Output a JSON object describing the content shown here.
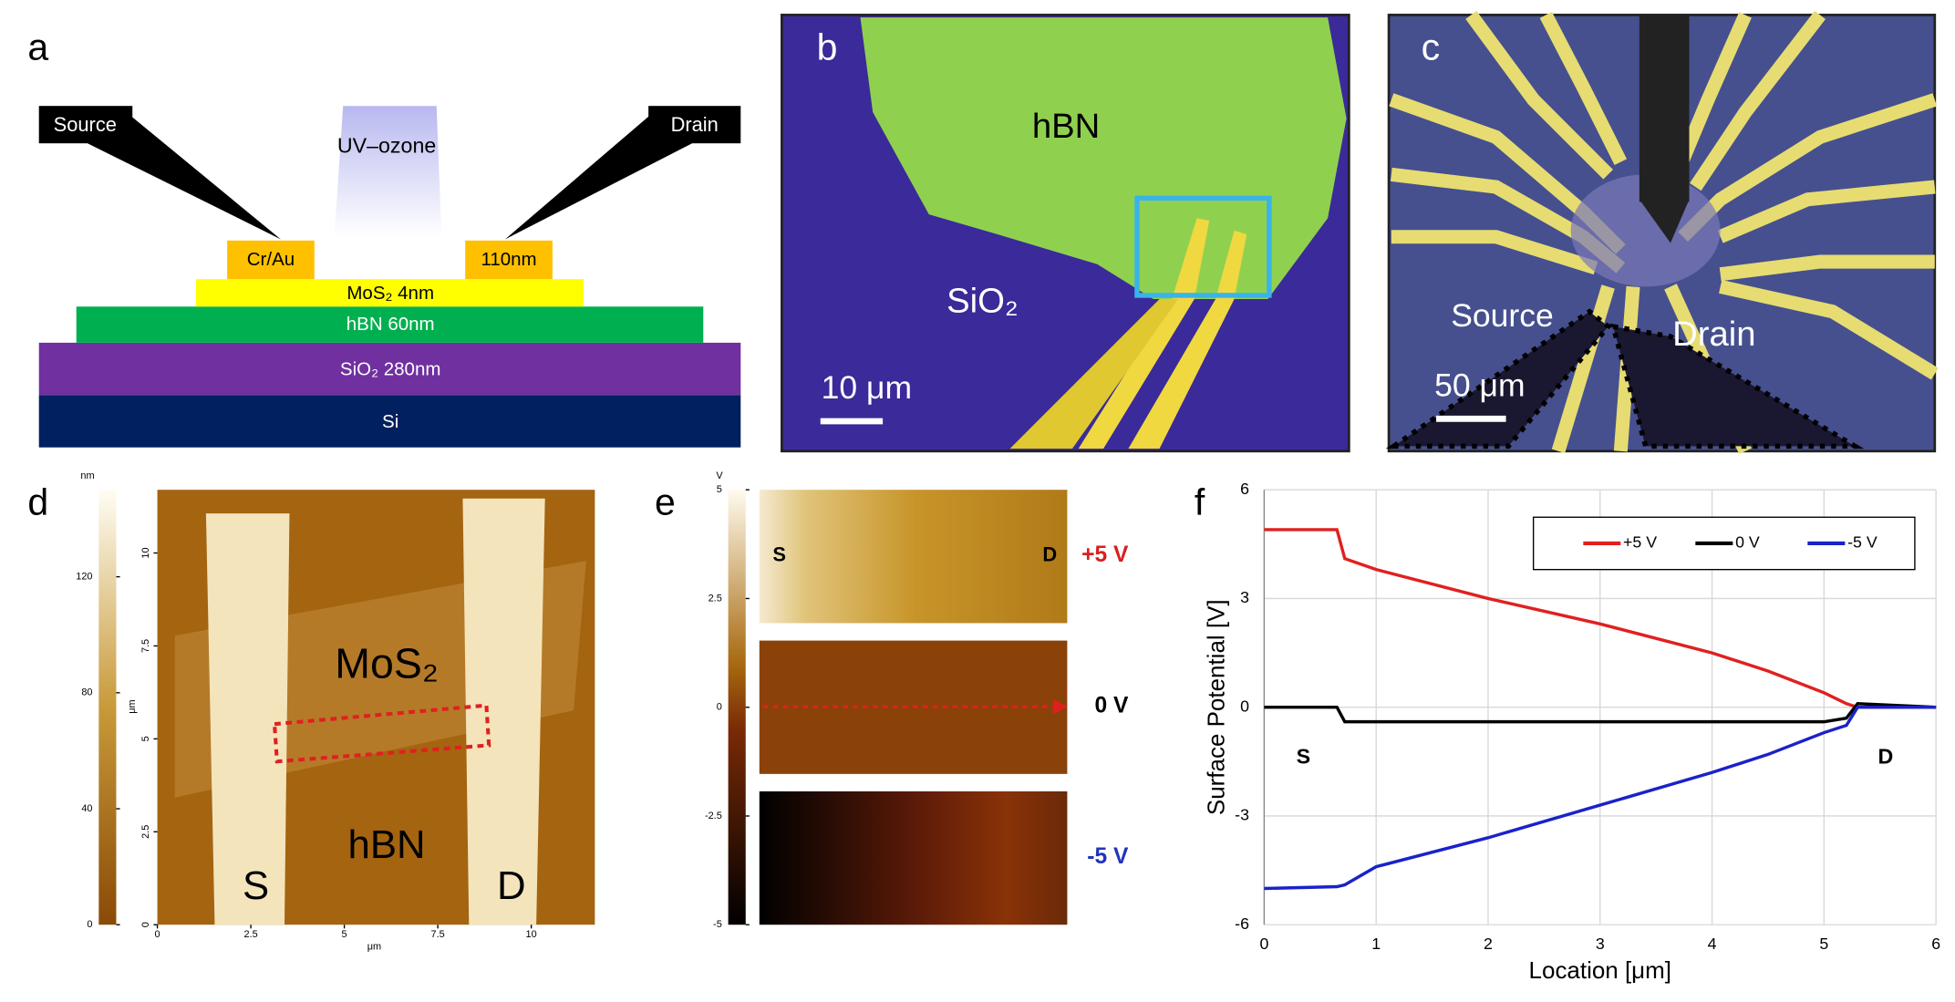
{
  "panel_a": {
    "label": "a",
    "source": "Source",
    "drain": "Drain",
    "uv": "UV–ozone",
    "contact_left": "Cr/Au",
    "contact_right": "110nm",
    "layers": [
      "MoS₂ 4nm",
      "hBN 60nm",
      "SiO₂ 280nm",
      "Si"
    ]
  },
  "panel_b": {
    "label": "b",
    "hbn": "hBN",
    "sio2": "SiO₂",
    "scale": "10 μm"
  },
  "panel_c": {
    "label": "c",
    "source": "Source",
    "drain": "Drain",
    "scale": "50 μm"
  },
  "panel_d": {
    "label": "d",
    "colorbar": {
      "unit": "nm",
      "lim": [
        0,
        150
      ],
      "ticks": [
        0,
        40,
        80,
        120
      ]
    },
    "xlim": [
      0,
      11.7
    ],
    "ylim": [
      0,
      11.7
    ],
    "xticks": [
      0,
      2.5,
      5,
      7.5,
      10
    ],
    "yticks": [
      0,
      2.5,
      5,
      7.5,
      10
    ],
    "xlabel": "μm",
    "ylabel": "μm",
    "mos2": "MoS₂",
    "hbn": "hBN",
    "s": "S",
    "d": "D"
  },
  "panel_e": {
    "label": "e",
    "colorbar": {
      "unit": "V",
      "lim": [
        -5,
        5
      ],
      "ticks": [
        -5,
        -2.5,
        0,
        2.5,
        5
      ]
    },
    "s": "S",
    "d": "D",
    "maps": [
      "+5 V",
      "0 V",
      "-5 V"
    ],
    "map_colors": [
      "#d62020",
      "#000000",
      "#2233bb"
    ]
  },
  "chart_data": {
    "type": "line",
    "panel_label": "f",
    "xlabel": "Location [μm]",
    "ylabel": "Surface Potential [V]",
    "x": [
      0,
      0.65,
      0.72,
      1,
      2,
      3,
      4,
      4.5,
      5,
      5.2,
      5.3,
      6
    ],
    "xlim": [
      0,
      6
    ],
    "ylim": [
      -6,
      6
    ],
    "xticks": [
      0,
      1,
      2,
      3,
      4,
      5,
      6
    ],
    "yticks": [
      -6,
      -3,
      0,
      3,
      6
    ],
    "grid": true,
    "legend": "upper right",
    "annotations": [
      "S",
      "D"
    ],
    "series": [
      {
        "name": "+5 V",
        "color": "#e02020",
        "values": [
          4.9,
          4.9,
          4.1,
          3.8,
          3.0,
          2.3,
          1.5,
          1.0,
          0.4,
          0.1,
          0.0,
          0.0
        ]
      },
      {
        "name": "0 V",
        "color": "#000000",
        "values": [
          0,
          0,
          -0.4,
          -0.4,
          -0.4,
          -0.4,
          -0.4,
          -0.4,
          -0.4,
          -0.3,
          0.1,
          0.0
        ]
      },
      {
        "name": "-5 V",
        "color": "#1a22c8",
        "values": [
          -5,
          -4.95,
          -4.9,
          -4.4,
          -3.6,
          -2.7,
          -1.8,
          -1.3,
          -0.7,
          -0.5,
          0.0,
          0.0
        ]
      }
    ]
  }
}
